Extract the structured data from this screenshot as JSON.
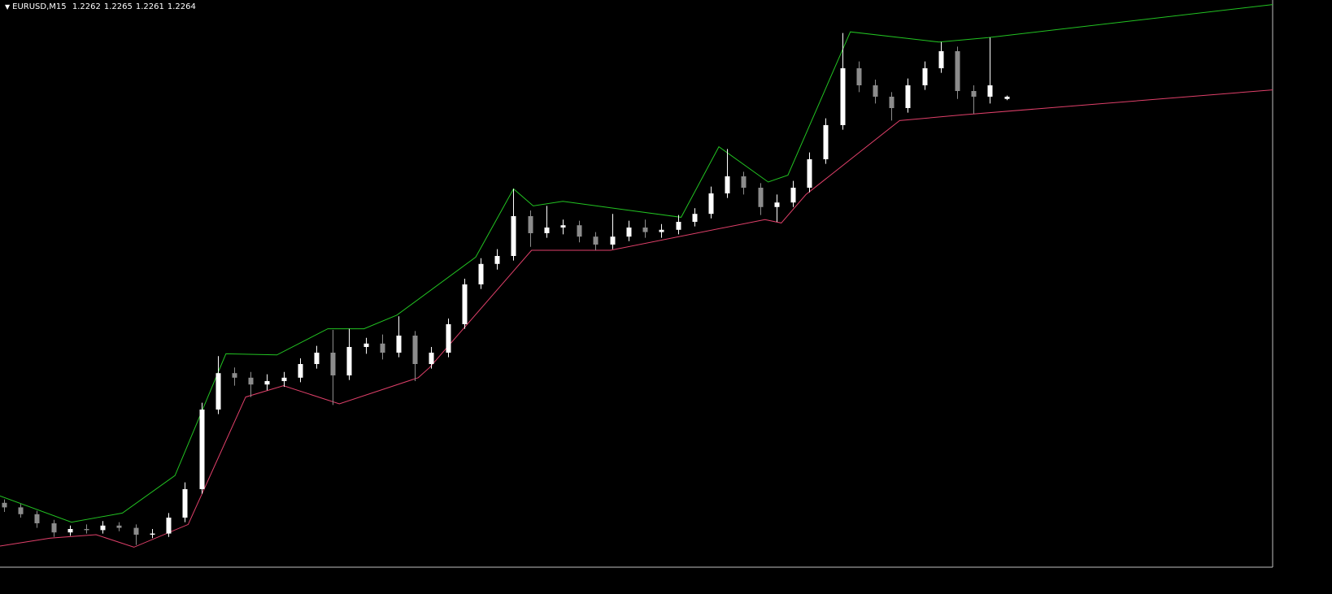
{
  "chart_data": {
    "type": "candlestick",
    "title": "EURUSD,M15",
    "xlim": [
      -0.25,
      77.2
    ],
    "ylim": [
      1.1849,
      1.2349
    ],
    "bull_color": "#ffffff",
    "bear_color": "#8c8c8c",
    "candles": {
      "open": [
        1.1907,
        1.1903,
        1.1897,
        1.1889,
        1.1881,
        1.1884,
        1.1883,
        1.1887,
        1.1885,
        1.1879,
        1.188,
        1.1894,
        1.1919,
        1.1989,
        1.2021,
        1.2017,
        1.2011,
        1.2014,
        1.2017,
        1.2029,
        1.2039,
        1.2019,
        1.2044,
        1.2047,
        1.2039,
        1.2054,
        1.2029,
        1.2039,
        1.2064,
        1.2099,
        1.2117,
        1.2124,
        1.2159,
        1.2144,
        1.2149,
        1.2151,
        1.2141,
        1.2134,
        1.2141,
        1.2149,
        1.2145,
        1.2147,
        1.2154,
        1.2161,
        1.2179,
        1.2194,
        1.2184,
        1.2167,
        1.2171,
        1.2184,
        1.2209,
        1.2239,
        1.2289,
        1.2274,
        1.2264,
        1.2254,
        1.2274,
        1.2289,
        1.2304,
        1.2269,
        1.2264,
        1.2262
      ],
      "high": [
        1.191,
        1.1906,
        1.19,
        1.1892,
        1.1887,
        1.1888,
        1.1891,
        1.189,
        1.1888,
        1.1884,
        1.1898,
        1.1925,
        1.1995,
        1.2036,
        1.2026,
        1.2022,
        1.202,
        1.2022,
        1.2034,
        1.2045,
        1.2059,
        1.206,
        1.2052,
        1.2055,
        1.2071,
        1.2058,
        1.2044,
        1.2069,
        1.2104,
        1.2122,
        1.213,
        1.2183,
        1.2164,
        1.2168,
        1.2156,
        1.2155,
        1.2145,
        1.2161,
        1.2155,
        1.2156,
        1.2152,
        1.216,
        1.2166,
        1.2185,
        1.2218,
        1.2198,
        1.2188,
        1.2178,
        1.219,
        1.2215,
        1.2245,
        1.232,
        1.2295,
        1.2279,
        1.2268,
        1.228,
        1.2295,
        1.2312,
        1.2308,
        1.2274,
        1.2316,
        1.2265
      ],
      "low": [
        1.1899,
        1.1894,
        1.1885,
        1.1877,
        1.1878,
        1.188,
        1.188,
        1.1882,
        1.187,
        1.1876,
        1.1877,
        1.189,
        1.1915,
        1.1985,
        1.201,
        1.2,
        1.2006,
        1.2009,
        1.2013,
        1.2025,
        1.1993,
        1.2015,
        1.2038,
        1.2033,
        1.2035,
        1.2014,
        1.2025,
        1.2035,
        1.206,
        1.2095,
        1.2112,
        1.212,
        1.2132,
        1.214,
        1.2143,
        1.2136,
        1.2129,
        1.213,
        1.2137,
        1.214,
        1.214,
        1.2143,
        1.215,
        1.2157,
        1.2175,
        1.2178,
        1.216,
        1.2154,
        1.2167,
        1.218,
        1.2205,
        1.2235,
        1.2268,
        1.2258,
        1.2243,
        1.225,
        1.227,
        1.2285,
        1.2262,
        1.2249,
        1.2258,
        1.2261
      ],
      "close": [
        1.1903,
        1.1897,
        1.1889,
        1.1881,
        1.1884,
        1.1883,
        1.1887,
        1.1885,
        1.1879,
        1.188,
        1.1894,
        1.1919,
        1.1989,
        1.2021,
        1.2017,
        1.2011,
        1.2014,
        1.2017,
        1.2029,
        1.2039,
        1.2019,
        1.2044,
        1.2047,
        1.2039,
        1.2054,
        1.2029,
        1.2039,
        1.2064,
        1.2099,
        1.2117,
        1.2124,
        1.2159,
        1.2144,
        1.2149,
        1.2151,
        1.2141,
        1.2134,
        1.2141,
        1.2149,
        1.2145,
        1.2147,
        1.2154,
        1.2161,
        1.2179,
        1.2194,
        1.2184,
        1.2167,
        1.2171,
        1.2184,
        1.2209,
        1.2239,
        1.2289,
        1.2274,
        1.2264,
        1.2254,
        1.2274,
        1.2289,
        1.2304,
        1.2269,
        1.2264,
        1.2274,
        1.2264
      ]
    },
    "series": [
      {
        "color": "#22c322",
        "x": [
          -0.25,
          4.1,
          7.2,
          10.4,
          13.5,
          16.6,
          19.7,
          21.9,
          23.9,
          28.7,
          31.0,
          32.2,
          34.0,
          41.2,
          43.5,
          46.5,
          47.7,
          51.5,
          56.9,
          59.9,
          77.2
        ],
        "values": [
          1.1913,
          1.189,
          1.1898,
          1.1931,
          1.2038,
          1.2037,
          1.206,
          1.206,
          1.2072,
          1.2123,
          1.2183,
          1.2168,
          1.2172,
          1.2158,
          1.222,
          1.2189,
          1.2195,
          1.2321,
          1.2312,
          1.2316,
          1.2345
        ]
      },
      {
        "color": "#e0406a",
        "x": [
          -0.25,
          2.8,
          5.6,
          7.9,
          11.2,
          14.7,
          17.0,
          20.4,
          25.2,
          25.9,
          32.1,
          36.9,
          46.3,
          47.3,
          48.8,
          54.5,
          58.3,
          77.2
        ],
        "values": [
          1.1869,
          1.1876,
          1.1879,
          1.1868,
          1.1888,
          1.2,
          1.201,
          1.1994,
          1.2017,
          1.2026,
          1.2129,
          1.2129,
          1.2156,
          1.2153,
          1.2178,
          1.2243,
          1.2248,
          1.227
        ]
      }
    ]
  }
}
